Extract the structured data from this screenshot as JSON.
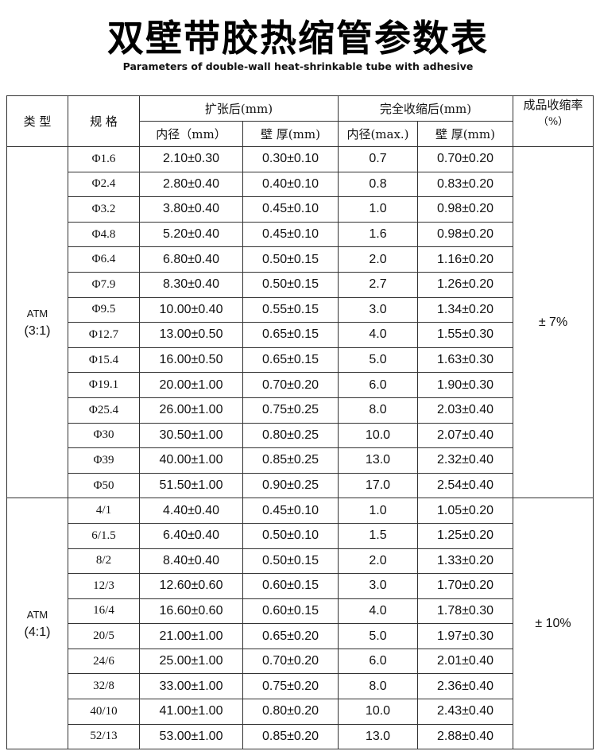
{
  "title": "双壁带胶热缩管参数表",
  "subtitle": "Parameters of double-wall heat-shrinkable tube with adhesive",
  "header": {
    "type": "类 型",
    "spec": "规 格",
    "expanded": "扩张后(mm)",
    "recovered": "完全收缩后(mm)",
    "shrink_rate": "成品收缩率",
    "shrink_rate_unit": "（%）",
    "exp_id": "内径（mm）",
    "exp_wall": "壁 厚(mm)",
    "rec_id": "内径(max.)",
    "rec_wall": "壁 厚(mm)"
  },
  "groups": [
    {
      "type_line1": "ATM",
      "type_line2": "(3:1)",
      "rate": "± 7%",
      "rows": [
        [
          "Φ1.6",
          "2.10±0.30",
          "0.30±0.10",
          "0.7",
          "0.70±0.20"
        ],
        [
          "Φ2.4",
          "2.80±0.40",
          "0.40±0.10",
          "0.8",
          "0.83±0.20"
        ],
        [
          "Φ3.2",
          "3.80±0.40",
          "0.45±0.10",
          "1.0",
          "0.98±0.20"
        ],
        [
          "Φ4.8",
          "5.20±0.40",
          "0.45±0.10",
          "1.6",
          "0.98±0.20"
        ],
        [
          "Φ6.4",
          "6.80±0.40",
          "0.50±0.15",
          "2.0",
          "1.16±0.20"
        ],
        [
          "Φ7.9",
          "8.30±0.40",
          "0.50±0.15",
          "2.7",
          "1.26±0.20"
        ],
        [
          "Φ9.5",
          "10.00±0.40",
          "0.55±0.15",
          "3.0",
          "1.34±0.20"
        ],
        [
          "Φ12.7",
          "13.00±0.50",
          "0.65±0.15",
          "4.0",
          "1.55±0.30"
        ],
        [
          "Φ15.4",
          "16.00±0.50",
          "0.65±0.15",
          "5.0",
          "1.63±0.30"
        ],
        [
          "Φ19.1",
          "20.00±1.00",
          "0.70±0.20",
          "6.0",
          "1.90±0.30"
        ],
        [
          "Φ25.4",
          "26.00±1.00",
          "0.75±0.25",
          "8.0",
          "2.03±0.40"
        ],
        [
          "Φ30",
          "30.50±1.00",
          "0.80±0.25",
          "10.0",
          "2.07±0.40"
        ],
        [
          "Φ39",
          "40.00±1.00",
          "0.85±0.25",
          "13.0",
          "2.32±0.40"
        ],
        [
          "Φ50",
          "51.50±1.00",
          "0.90±0.25",
          "17.0",
          "2.54±0.40"
        ]
      ]
    },
    {
      "type_line1": "ATM",
      "type_line2": "(4:1)",
      "rate": "± 10%",
      "rows": [
        [
          "4/1",
          "4.40±0.40",
          "0.45±0.10",
          "1.0",
          "1.05±0.20"
        ],
        [
          "6/1.5",
          "6.40±0.40",
          "0.50±0.10",
          "1.5",
          "1.25±0.20"
        ],
        [
          "8/2",
          "8.40±0.40",
          "0.50±0.15",
          "2.0",
          "1.33±0.20"
        ],
        [
          "12/3",
          "12.60±0.60",
          "0.60±0.15",
          "3.0",
          "1.70±0.20"
        ],
        [
          "16/4",
          "16.60±0.60",
          "0.60±0.15",
          "4.0",
          "1.78±0.30"
        ],
        [
          "20/5",
          "21.00±1.00",
          "0.65±0.20",
          "5.0",
          "1.97±0.30"
        ],
        [
          "24/6",
          "25.00±1.00",
          "0.70±0.20",
          "6.0",
          "2.01±0.40"
        ],
        [
          "32/8",
          "33.00±1.00",
          "0.75±0.20",
          "8.0",
          "2.36±0.40"
        ],
        [
          "40/10",
          "41.00±1.00",
          "0.80±0.20",
          "10.0",
          "2.43±0.40"
        ],
        [
          "52/13",
          "53.00±1.00",
          "0.85±0.20",
          "13.0",
          "2.88±0.40"
        ]
      ]
    }
  ]
}
